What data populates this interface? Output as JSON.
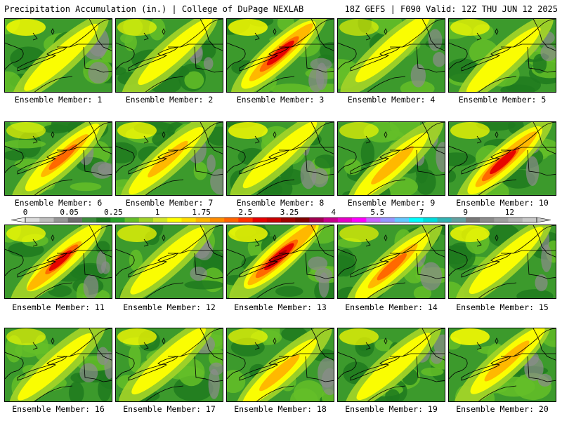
{
  "header": {
    "left_title": "Precipitation Accumulation (in.) | College of DuPage NEXLAB",
    "right_title": "18Z GEFS | F090 Valid: 12Z THU JUN 12 2025"
  },
  "panel_label_prefix": "Ensemble Member: ",
  "members": [
    1,
    2,
    3,
    4,
    5,
    6,
    7,
    8,
    9,
    10,
    11,
    12,
    13,
    14,
    15,
    16,
    17,
    18,
    19,
    20
  ],
  "member_intensity": [
    0.25,
    0.22,
    0.9,
    0.35,
    0.3,
    0.55,
    0.4,
    0.15,
    0.45,
    0.85,
    0.7,
    0.3,
    1.0,
    0.6,
    0.35,
    0.15,
    0.3,
    0.4,
    0.3,
    0.5
  ],
  "colorbar": {
    "tick_labels": [
      "0",
      "0.05",
      "0.25",
      "1",
      "1.75",
      "2.5",
      "3.25",
      "4",
      "5.5",
      "7",
      "9",
      "12"
    ],
    "colors": [
      "#dcdcdc",
      "#bebebe",
      "#969696",
      "#6e6e6e",
      "#3c8c3c",
      "#1e7a1e",
      "#28a028",
      "#64be28",
      "#a0d228",
      "#d2e628",
      "#ffff00",
      "#ffdc00",
      "#ffb400",
      "#ff8c00",
      "#ff6400",
      "#ff3200",
      "#e60000",
      "#c80000",
      "#a00000",
      "#820000",
      "#a00050",
      "#c8008c",
      "#e600c8",
      "#ff00ff",
      "#c864ff",
      "#9696ff",
      "#64c8ff",
      "#00ffff",
      "#00dcdc",
      "#32b4b4",
      "#64a0a0",
      "#787878",
      "#8c8c8c",
      "#a0a0a0",
      "#b4b4b4",
      "#c8c8c8"
    ]
  },
  "map_colors": {
    "green_dark": "#1e7a1e",
    "green": "#3c9a2c",
    "green_light": "#64be28",
    "yellow_green": "#a0d228",
    "yellow": "#ffff00",
    "gold": "#ffb400",
    "orange": "#ff6400",
    "red": "#e60000",
    "dark_red": "#b00000",
    "gray": "#8c8c8c",
    "border": "#000000"
  }
}
